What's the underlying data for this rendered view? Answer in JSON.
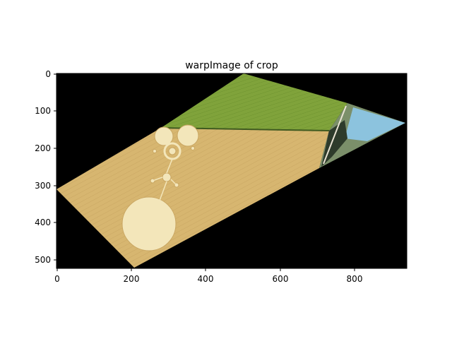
{
  "figure": {
    "title": "warpImage of crop",
    "background": "#000000",
    "x_ticks": [
      "0",
      "200",
      "400",
      "600",
      "800"
    ],
    "y_ticks": [
      "0",
      "100",
      "200",
      "300",
      "400",
      "500"
    ],
    "x_range": [
      0,
      940
    ],
    "y_range": [
      525,
      0
    ],
    "image_content": "warped aerial photo of a crop field with crop circles",
    "colors": {
      "wheat": "#d9b873",
      "grass": "#7fa33a",
      "circle": "#f3e6ba",
      "sky_water": "#8cc3de"
    }
  }
}
